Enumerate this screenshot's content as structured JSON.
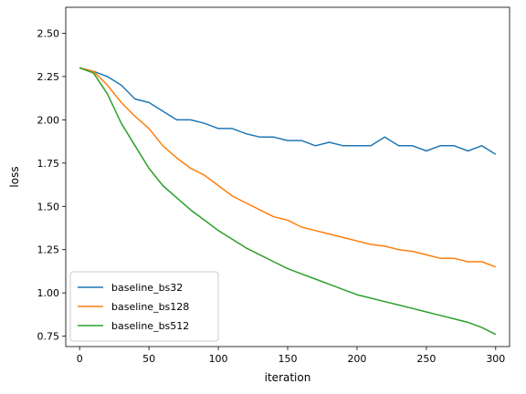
{
  "chart_data": {
    "type": "line",
    "title": "",
    "xlabel": "iteration",
    "ylabel": "loss",
    "xlim": [
      -10,
      310
    ],
    "ylim": [
      0.69,
      2.65
    ],
    "xticks": [
      0,
      50,
      100,
      150,
      200,
      250,
      300
    ],
    "yticks": [
      0.75,
      1.0,
      1.25,
      1.5,
      1.75,
      2.0,
      2.25,
      2.5
    ],
    "ytick_labels": [
      "0.75",
      "1.00",
      "1.25",
      "1.50",
      "1.75",
      "2.00",
      "2.25",
      "2.50"
    ],
    "grid": false,
    "legend_position": "lower-left",
    "series": [
      {
        "name": "baseline_bs32",
        "color": "#1f77b4",
        "x": [
          0,
          10,
          20,
          30,
          40,
          50,
          60,
          70,
          80,
          90,
          100,
          110,
          120,
          130,
          140,
          150,
          160,
          170,
          180,
          190,
          200,
          210,
          220,
          230,
          240,
          250,
          260,
          270,
          280,
          290,
          300
        ],
        "y": [
          2.3,
          2.28,
          2.25,
          2.2,
          2.12,
          2.1,
          2.05,
          2.0,
          2.0,
          1.98,
          1.95,
          1.95,
          1.92,
          1.9,
          1.9,
          1.88,
          1.88,
          1.85,
          1.87,
          1.85,
          1.85,
          1.85,
          1.9,
          1.85,
          1.85,
          1.82,
          1.85,
          1.85,
          1.82,
          1.85,
          1.8
        ]
      },
      {
        "name": "baseline_bs128",
        "color": "#ff7f0e",
        "x": [
          0,
          10,
          20,
          30,
          40,
          50,
          60,
          70,
          80,
          90,
          100,
          110,
          120,
          130,
          140,
          150,
          160,
          170,
          180,
          190,
          200,
          210,
          220,
          230,
          240,
          250,
          260,
          270,
          280,
          290,
          300
        ],
        "y": [
          2.3,
          2.28,
          2.2,
          2.1,
          2.02,
          1.95,
          1.85,
          1.78,
          1.72,
          1.68,
          1.62,
          1.56,
          1.52,
          1.48,
          1.44,
          1.42,
          1.38,
          1.36,
          1.34,
          1.32,
          1.3,
          1.28,
          1.27,
          1.25,
          1.24,
          1.22,
          1.2,
          1.2,
          1.18,
          1.18,
          1.15
        ]
      },
      {
        "name": "baseline_bs512",
        "color": "#2ca02c",
        "x": [
          0,
          10,
          20,
          30,
          40,
          50,
          60,
          70,
          80,
          90,
          100,
          110,
          120,
          130,
          140,
          150,
          160,
          170,
          180,
          190,
          200,
          210,
          220,
          230,
          240,
          250,
          260,
          270,
          280,
          290,
          300
        ],
        "y": [
          2.3,
          2.27,
          2.15,
          1.98,
          1.85,
          1.72,
          1.62,
          1.55,
          1.48,
          1.42,
          1.36,
          1.31,
          1.26,
          1.22,
          1.18,
          1.14,
          1.11,
          1.08,
          1.05,
          1.02,
          0.99,
          0.97,
          0.95,
          0.93,
          0.91,
          0.89,
          0.87,
          0.85,
          0.83,
          0.8,
          0.76
        ]
      }
    ]
  }
}
